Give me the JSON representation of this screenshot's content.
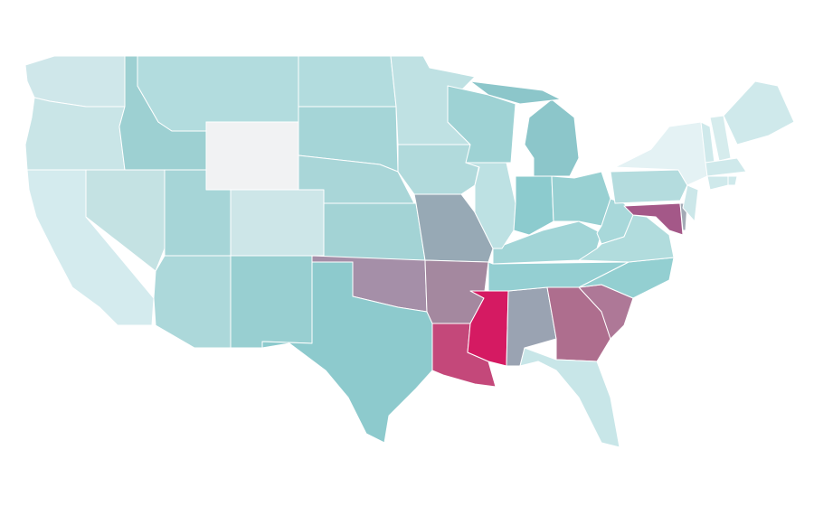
{
  "map": {
    "regions": [
      {
        "color": "#cfe7ea"
      },
      {
        "color": "#c9e5e7"
      },
      {
        "color": "#d4ebee"
      },
      {
        "color": "#c4e2e3"
      },
      {
        "color": "#9dd0d2"
      },
      {
        "color": "#b2dcde"
      },
      {
        "color": "#f1f2f3"
      },
      {
        "color": "#a6d5d7"
      },
      {
        "color": "#cde6e8"
      },
      {
        "color": "#acd8da"
      },
      {
        "color": "#98cfd1"
      },
      {
        "color": "#b2dcde"
      },
      {
        "color": "#a5d5d7"
      },
      {
        "color": "#a9d6d8"
      },
      {
        "color": "#a3d3d5"
      },
      {
        "color": "#a58fa8"
      },
      {
        "color": "#8dcacd"
      },
      {
        "color": "#bfe1e3"
      },
      {
        "color": "#b1dadc"
      },
      {
        "color": "#97a9b5"
      },
      {
        "color": "#a4889f"
      },
      {
        "color": "#c4487a"
      },
      {
        "color": "#d51a62"
      },
      {
        "color": "#9aa3b2"
      },
      {
        "color": "#ae6e8e"
      },
      {
        "color": "#c8e6e8"
      },
      {
        "color": "#ae7897"
      },
      {
        "color": "#93cfd1"
      },
      {
        "color": "#94cfd2"
      },
      {
        "color": "#a2d5d7"
      },
      {
        "color": "#bde1e3"
      },
      {
        "color": "#9ed2d4"
      },
      {
        "color": "#8cc6ca"
      },
      {
        "color": "#8cc6ca"
      },
      {
        "color": "#8ccbce"
      },
      {
        "color": "#98d0d2"
      },
      {
        "color": "#a8d8da"
      },
      {
        "color": "#b1dcdd"
      },
      {
        "color": "#b4dcde"
      },
      {
        "color": "#e4f2f4"
      },
      {
        "color": "#a45888"
      },
      {
        "color": "#a3aab5"
      },
      {
        "color": "#cce7e9"
      },
      {
        "color": "#cfe9eb"
      },
      {
        "color": "#d6eced"
      },
      {
        "color": "#cfe9eb"
      },
      {
        "color": "#cfe9eb"
      },
      {
        "color": "#cfe9eb"
      },
      {
        "color": "#cfe9eb"
      }
    ]
  }
}
